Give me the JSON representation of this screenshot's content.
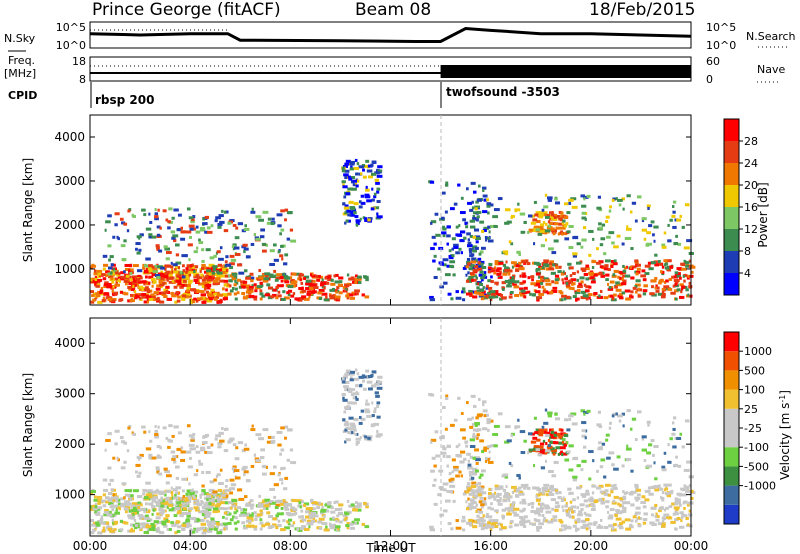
{
  "header": {
    "station": "Prince George (fitACF)",
    "beam": "Beam 08",
    "date": "18/Feb/2015"
  },
  "side_labels": {
    "nsky": "N.Sky",
    "freq_line1": "Freq.",
    "freq_line2": "[MHz]",
    "cpid": "CPID",
    "nsearch": "N.Search",
    "nave": "Nave"
  },
  "colors": {
    "power": [
      "#0000ff",
      "#1e3cb4",
      "#3c8c50",
      "#7dc864",
      "#f0c800",
      "#f07800",
      "#e63c14",
      "#ff0000"
    ],
    "velocity": [
      "#ff0000",
      "#f05000",
      "#f09000",
      "#f0c030",
      "#c8c8c8",
      "#c8c8c8",
      "#6cd040",
      "#3c9040",
      "#3c6ca0",
      "#1e3cc8"
    ],
    "scatter_gray": "#c8c8c8"
  },
  "chart_data": [
    {
      "type": "line",
      "panel": "noise",
      "x_ticks": [
        "00:00",
        "04:00",
        "08:00",
        "12:00",
        "16:00",
        "20:00",
        "00:00"
      ],
      "left_axis": {
        "ticks": [
          "10^5",
          "10^0"
        ]
      },
      "right_axis": {
        "ticks": [
          "10^5",
          "10^0"
        ]
      },
      "series": [
        {
          "x": [
            0,
            2,
            4,
            5.5,
            6,
            10,
            13,
            14,
            15,
            16,
            18,
            20,
            22,
            24
          ],
          "y": [
            0.55,
            0.5,
            0.55,
            0.55,
            0.3,
            0.28,
            0.25,
            0.25,
            0.75,
            0.68,
            0.55,
            0.55,
            0.5,
            0.45
          ]
        }
      ]
    },
    {
      "type": "line",
      "panel": "frequency",
      "left_axis": {
        "ticks": [
          "18",
          "8"
        ]
      },
      "right_axis": {
        "ticks": [
          "60",
          "0"
        ]
      },
      "series": [
        {
          "x": [
            0,
            14,
            24
          ],
          "y": [
            0.4,
            0.4,
            0.4
          ]
        }
      ]
    },
    {
      "type": "table",
      "panel": "cpid",
      "segments": [
        {
          "start_hour": 0,
          "label": "rbsp 200"
        },
        {
          "start_hour": 14,
          "label": "twofsound -3503"
        }
      ]
    },
    {
      "type": "heatmap",
      "panel": "power",
      "xlabel": "",
      "ylabel": "Slant Range [km]",
      "xlim": [
        0,
        24
      ],
      "ylim": [
        180,
        4500
      ],
      "y_ticks": [
        "1000",
        "2000",
        "3000",
        "4000"
      ],
      "colorbar": {
        "label": "Power [dB]",
        "range": [
          0,
          32
        ],
        "ticks": [
          "4",
          "8",
          "12",
          "16",
          "20",
          "24",
          "28"
        ]
      }
    },
    {
      "type": "heatmap",
      "panel": "velocity",
      "xlabel": "Time UT",
      "ylabel": "Slant Range [km]",
      "xlim": [
        0,
        24
      ],
      "ylim": [
        180,
        4500
      ],
      "x_ticks": [
        "00:00",
        "04:00",
        "08:00",
        "12:00",
        "16:00",
        "20:00",
        "00:00"
      ],
      "y_ticks": [
        "1000",
        "2000",
        "3000",
        "4000"
      ],
      "colorbar": {
        "label": "Velocity [m s^-1]",
        "ticks": [
          "1000",
          "500",
          "100",
          "25",
          "-25",
          "-100",
          "-500",
          "-1000"
        ]
      }
    }
  ]
}
